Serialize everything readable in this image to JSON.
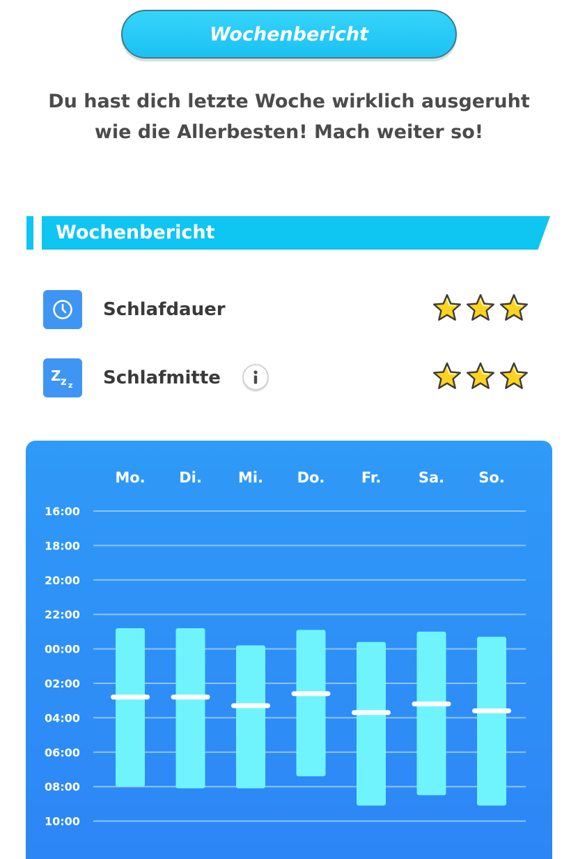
{
  "header": {
    "title": "Wochenbericht"
  },
  "message": {
    "line1": "Du hast dich letzte Woche wirklich ausgeruht",
    "line2": "wie die Allerbesten! Mach weiter so!"
  },
  "section": {
    "title": "Wochenbericht"
  },
  "ratings": [
    {
      "label": "Schlafdauer",
      "icon": "clock-icon",
      "stars": 3,
      "max_stars": 3
    },
    {
      "label": "Schlafmitte",
      "icon": "zzz-icon",
      "stars": 3,
      "max_stars": 3,
      "info_icon": "info-icon"
    }
  ],
  "colors": {
    "accent": "#0fc5f1",
    "card": "#2f9af7",
    "bar": "#6ff4fd",
    "icon_bg": "#3f95f4",
    "star": "#ffd21e"
  },
  "chart_data": {
    "type": "bar",
    "orientation": "vertical-range",
    "categories": [
      "Mo.",
      "Di.",
      "Mi.",
      "Do.",
      "Fr.",
      "Sa.",
      "So."
    ],
    "y_ticks": [
      "16:00",
      "18:00",
      "20:00",
      "22:00",
      "00:00",
      "02:00",
      "04:00",
      "06:00",
      "08:00",
      "10:00"
    ],
    "y_range_hours": [
      16,
      34
    ],
    "series": [
      {
        "values_start_hours": [
          22.8,
          22.8,
          23.8,
          22.9,
          23.6,
          23.0,
          23.3
        ]
      },
      {
        "values_end_hours": [
          32.0,
          32.1,
          32.1,
          31.4,
          33.1,
          32.5,
          33.1
        ]
      },
      {
        "values_midpoint_hours": [
          26.8,
          26.8,
          27.3,
          26.6,
          27.7,
          27.2,
          27.6
        ]
      }
    ]
  }
}
